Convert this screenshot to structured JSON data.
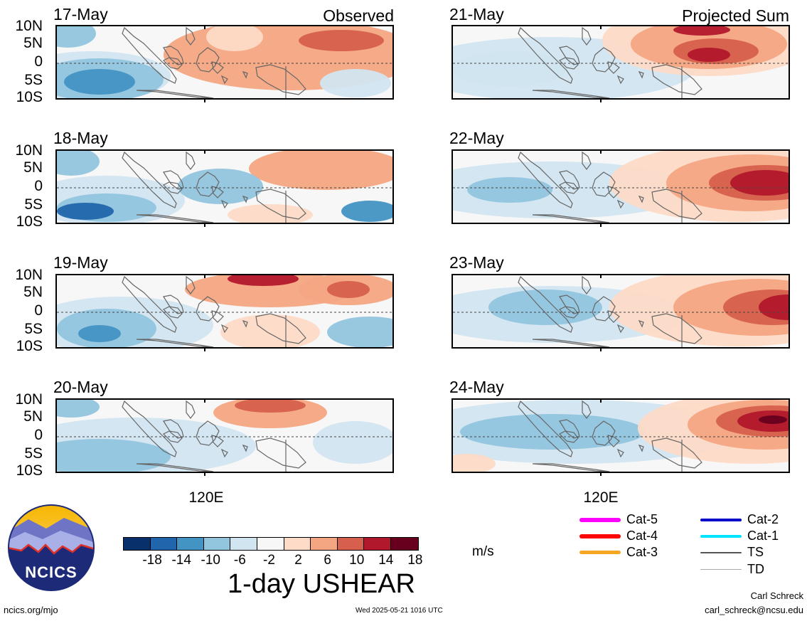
{
  "panels_left_header": "Observed",
  "panels_right_header": "Projected Sum",
  "observed_panels": [
    {
      "date": "17-May"
    },
    {
      "date": "18-May"
    },
    {
      "date": "19-May"
    },
    {
      "date": "20-May"
    }
  ],
  "projected_panels": [
    {
      "date": "21-May"
    },
    {
      "date": "22-May"
    },
    {
      "date": "23-May"
    },
    {
      "date": "24-May"
    }
  ],
  "lat_labels": [
    "10N",
    "5N",
    "0",
    "5S",
    "10S"
  ],
  "lon_label": "120E",
  "colorbar": {
    "tick_labels": [
      "-18",
      "-14",
      "-10",
      "-6",
      "-2",
      "2",
      "6",
      "10",
      "14",
      "18"
    ],
    "colors": [
      "#08306b",
      "#2166ac",
      "#4393c3",
      "#92c5de",
      "#d1e5f0",
      "#f7f7f7",
      "#fddbc7",
      "#f4a582",
      "#d6604d",
      "#b2182b",
      "#67001f"
    ],
    "units": "m/s",
    "title": "1-day USHEAR"
  },
  "storm_legend": [
    {
      "label": "Cat-5",
      "color": "#ff00ff"
    },
    {
      "label": "Cat-4",
      "color": "#ff0000"
    },
    {
      "label": "Cat-3",
      "color": "#f5a623"
    },
    {
      "label": "Cat-2",
      "color": "#0000cc"
    },
    {
      "label": "Cat-1",
      "color": "#00e5ff"
    },
    {
      "label": "TS",
      "color": "#555555"
    },
    {
      "label": "TD",
      "color": "#aaaaaa"
    }
  ],
  "logo_text": "NCICS",
  "footer": {
    "website": "ncics.org/mjo",
    "timestamp": "Wed 2025-05-21 1016 UTC",
    "author": "Carl Schreck",
    "email": "carl_schreck@ncsu.edu"
  }
}
